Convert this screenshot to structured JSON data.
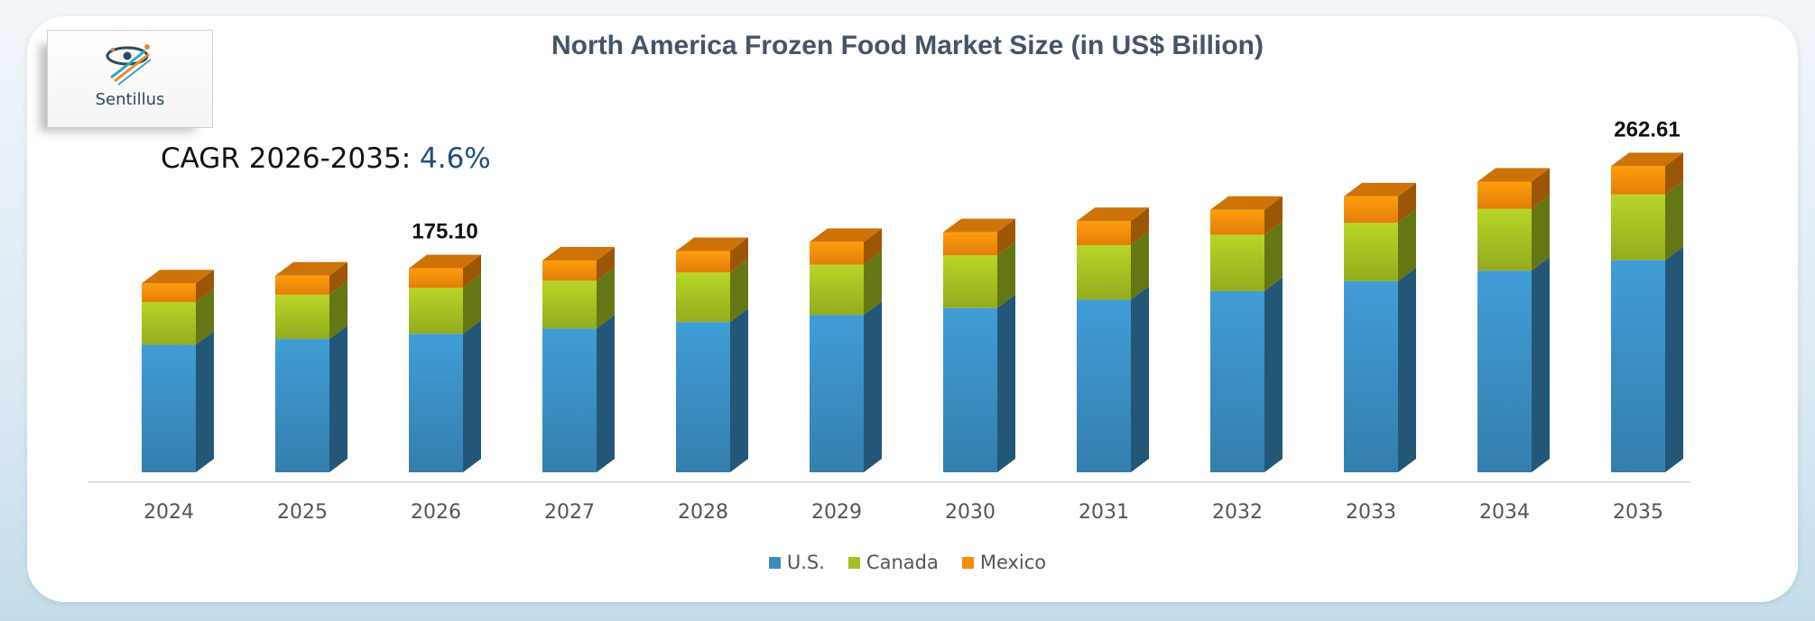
{
  "brand": {
    "name": "Sentillus",
    "logo_icon": "sentillus-logo-icon"
  },
  "header": {
    "title": "North America Frozen Food Market Size (in US$ Billion)",
    "cagr_label": "CAGR 2026-2035:",
    "cagr_value": "4.6%"
  },
  "colors": {
    "us": "#3a8cc0",
    "canada": "#a3bf22",
    "mexico": "#fb8c0a"
  },
  "chart_data": {
    "type": "bar",
    "stacked": true,
    "three_d": true,
    "categories": [
      "2024",
      "2025",
      "2026",
      "2027",
      "2028",
      "2029",
      "2030",
      "2031",
      "2032",
      "2033",
      "2034",
      "2035"
    ],
    "series": [
      {
        "name": "U.S.",
        "values": [
          109.4,
          114.4,
          118.9,
          123.4,
          129.0,
          135.0,
          141.0,
          148.2,
          155.5,
          164.0,
          173.0,
          182.0
        ]
      },
      {
        "name": "Canada",
        "values": [
          36.5,
          38.0,
          39.3,
          41.0,
          42.4,
          43.2,
          45.2,
          46.7,
          48.3,
          50.0,
          53.0,
          56.4
        ]
      },
      {
        "name": "Mexico",
        "values": [
          16.2,
          16.4,
          16.9,
          17.3,
          18.5,
          19.5,
          19.8,
          20.7,
          21.4,
          22.7,
          23.4,
          24.21
        ]
      }
    ],
    "data_labels": [
      {
        "category": "2026",
        "text": "175.10"
      },
      {
        "category": "2035",
        "text": "262.61"
      }
    ],
    "ylim": [
      0,
      290
    ],
    "legend": "bottom",
    "grid": false
  }
}
